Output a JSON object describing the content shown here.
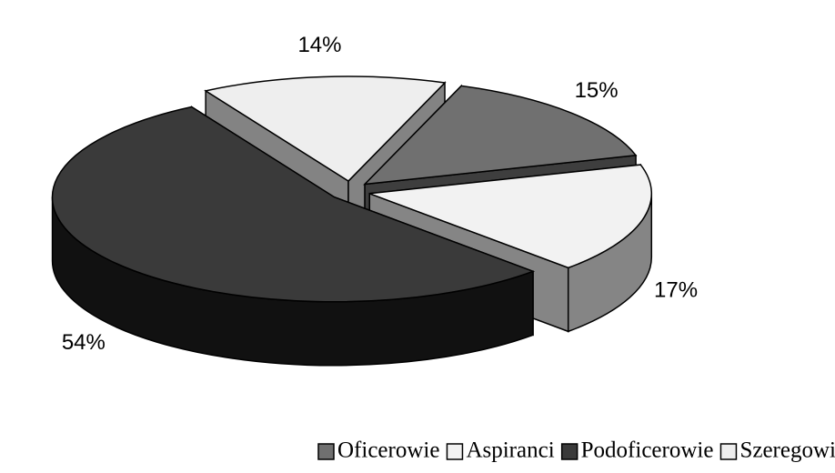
{
  "chart_data": {
    "type": "pie",
    "categories": [
      "Oficerowie",
      "Aspiranci",
      "Podoficerowie",
      "Szeregowi"
    ],
    "values": [
      15,
      17,
      54,
      14
    ],
    "value_labels": [
      "15%",
      "17%",
      "54%",
      "14%"
    ],
    "colors": [
      "#707070",
      "#f2f2f2",
      "#3a3a3a",
      "#eeeeee"
    ],
    "legend": "bottom"
  }
}
